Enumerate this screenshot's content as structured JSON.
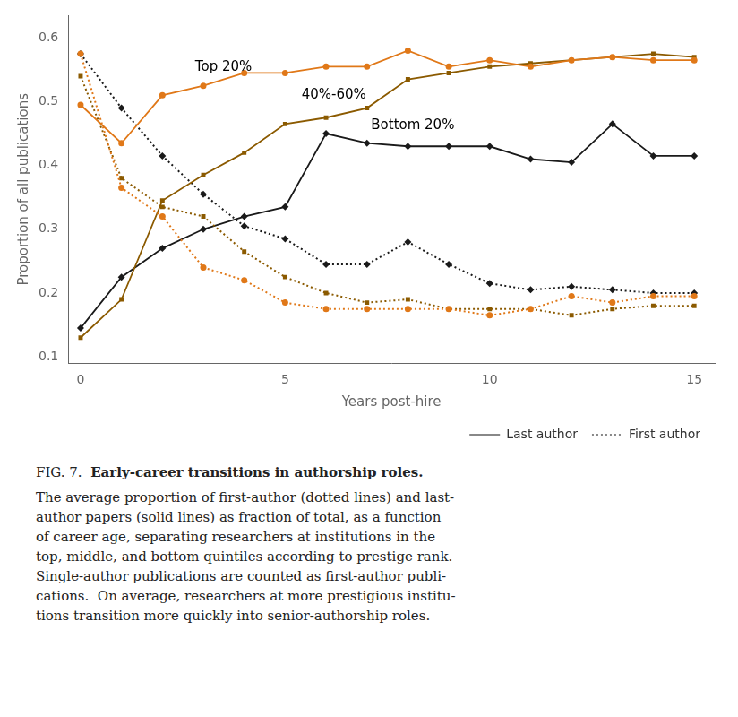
{
  "chart_data": {
    "type": "line",
    "xlabel": "Years post-hire",
    "ylabel": "Proportion of all publications",
    "x": [
      0,
      1,
      2,
      3,
      4,
      5,
      6,
      7,
      8,
      9,
      10,
      11,
      12,
      13,
      14,
      15
    ],
    "series": [
      {
        "name": "Last author",
        "color": "#E07818",
        "marker": "circle",
        "line_style": "solid",
        "values": [
          0.495,
          0.435,
          0.51,
          0.525,
          0.545,
          0.545,
          0.555,
          0.555,
          0.58,
          0.555,
          0.565,
          0.555,
          0.565,
          0.57,
          0.565,
          0.565
        ]
      },
      {
        "name": "First author",
        "color": "#E07818",
        "marker": "circle",
        "line_style": "dotted",
        "values": [
          0.575,
          0.365,
          0.32,
          0.24,
          0.22,
          0.185,
          0.175,
          0.175,
          0.175,
          0.175,
          0.165,
          0.175,
          0.195,
          0.185,
          0.195,
          0.195
        ]
      },
      {
        "name": "Last author",
        "color": "#8B5A00",
        "marker": "square",
        "line_style": "solid",
        "values": [
          0.13,
          0.19,
          0.345,
          0.385,
          0.42,
          0.465,
          0.475,
          0.49,
          0.535,
          0.545,
          0.555,
          0.56,
          0.565,
          0.57,
          0.575,
          0.57
        ]
      },
      {
        "name": "First author",
        "color": "#8B5A00",
        "marker": "square",
        "line_style": "dotted",
        "values": [
          0.54,
          0.38,
          0.335,
          0.32,
          0.265,
          0.225,
          0.2,
          0.185,
          0.19,
          0.175,
          0.175,
          0.175,
          0.165,
          0.175,
          0.18,
          0.18
        ]
      },
      {
        "name": "Last author",
        "color": "#1A1A1A",
        "marker": "diamond",
        "line_style": "solid",
        "values": [
          0.145,
          0.225,
          0.27,
          0.3,
          0.32,
          0.335,
          0.45,
          0.435,
          0.43,
          0.43,
          0.43,
          0.41,
          0.405,
          0.465,
          0.415,
          0.415
        ]
      },
      {
        "name": "First author",
        "color": "#1A1A1A",
        "marker": "diamond",
        "line_style": "dotted",
        "values": [
          0.575,
          0.49,
          0.415,
          0.355,
          0.305,
          0.285,
          0.245,
          0.245,
          0.28,
          0.245,
          0.215,
          0.205,
          0.21,
          0.205,
          0.2,
          0.2
        ]
      }
    ],
    "xlim": [
      -0.3,
      15.5
    ],
    "ylim": [
      0.09,
      0.635
    ],
    "xticks": [
      0,
      5,
      10,
      15
    ],
    "yticks": [
      0.1,
      0.2,
      0.3,
      0.4,
      0.5,
      0.6
    ],
    "grid": false,
    "legend": "lower right",
    "annotations": [
      {
        "text": "Top 20%",
        "x": 2.8,
        "y": 0.548
      },
      {
        "text": "40%-60%",
        "x": 5.4,
        "y": 0.505
      },
      {
        "text": "Bottom 20%",
        "x": 7.1,
        "y": 0.457
      }
    ],
    "caption": {
      "label": "FIG. 7.",
      "title": "Early-career transitions in authorship roles.",
      "lines": [
        "The average proportion of first-author (dotted lines) and last-",
        "author papers (solid lines) as fraction of total, as a function",
        "of career age, separating researchers at institutions in the",
        "top, middle, and bottom quintiles according to prestige rank.",
        "Single-author publications are counted as first-author publi-",
        "cations.  On average, researchers at more prestigious institu-",
        "tions transition more quickly into senior-authorship roles."
      ]
    }
  }
}
